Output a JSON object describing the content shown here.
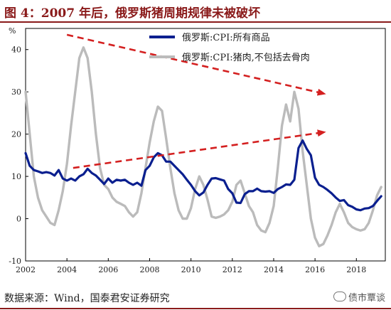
{
  "figure": {
    "title": "图 4：2007 年后，俄罗斯猪周期规律未被破坏",
    "source": "数据来源：Wind，国泰君安证券研究",
    "watermark": "债市覃谈"
  },
  "chart_data": {
    "type": "line",
    "title": "",
    "ylabel": "%",
    "xlabel": "",
    "ylim": [
      -10,
      45
    ],
    "xlim": [
      2002,
      2019.4
    ],
    "yticks": [
      -10,
      0,
      10,
      20,
      30,
      40
    ],
    "xticks": [
      "2002",
      "2004",
      "2006",
      "2008",
      "2010",
      "2012",
      "2014",
      "2016",
      "2018"
    ],
    "legend_position": "top-right",
    "grid": false,
    "series": [
      {
        "name": "俄罗斯:CPI:所有商品",
        "color": "#0a1f8f",
        "x": [
          2002.0,
          2002.2,
          2002.4,
          2002.6,
          2002.8,
          2003.0,
          2003.2,
          2003.4,
          2003.6,
          2003.8,
          2004.0,
          2004.2,
          2004.4,
          2004.6,
          2004.8,
          2005.0,
          2005.2,
          2005.4,
          2005.6,
          2005.8,
          2006.0,
          2006.2,
          2006.4,
          2006.6,
          2006.8,
          2007.0,
          2007.2,
          2007.4,
          2007.6,
          2007.8,
          2008.0,
          2008.2,
          2008.4,
          2008.6,
          2008.8,
          2009.0,
          2009.2,
          2009.4,
          2009.6,
          2009.8,
          2010.0,
          2010.2,
          2010.4,
          2010.6,
          2010.8,
          2011.0,
          2011.2,
          2011.4,
          2011.6,
          2011.8,
          2012.0,
          2012.2,
          2012.4,
          2012.6,
          2012.8,
          2013.0,
          2013.2,
          2013.4,
          2013.6,
          2013.8,
          2014.0,
          2014.2,
          2014.4,
          2014.6,
          2014.8,
          2015.0,
          2015.2,
          2015.4,
          2015.6,
          2015.8,
          2016.0,
          2016.2,
          2016.4,
          2016.6,
          2016.8,
          2017.0,
          2017.2,
          2017.4,
          2017.6,
          2017.8,
          2018.0,
          2018.2,
          2018.4,
          2018.6,
          2018.8,
          2019.0,
          2019.2
        ],
        "values": [
          15.5,
          12.5,
          11.5,
          11.2,
          10.8,
          11.0,
          10.8,
          10.2,
          11.5,
          9.5,
          9.0,
          9.5,
          9.0,
          10.0,
          10.5,
          11.8,
          10.8,
          10.2,
          9.2,
          8.2,
          9.5,
          8.5,
          9.2,
          9.0,
          9.2,
          8.5,
          8.0,
          8.5,
          7.8,
          11.5,
          12.5,
          14.5,
          15.5,
          15.0,
          13.5,
          13.5,
          12.5,
          11.5,
          10.5,
          9.2,
          8.0,
          6.5,
          5.5,
          6.2,
          8.0,
          9.5,
          9.6,
          9.3,
          9.0,
          7.0,
          6.0,
          3.8,
          3.7,
          5.8,
          6.5,
          6.5,
          7.1,
          6.5,
          6.4,
          6.5,
          6.1,
          7.0,
          7.5,
          8.1,
          8.0,
          9.2,
          16.7,
          18.5,
          16.5,
          15.0,
          9.7,
          8.0,
          7.5,
          6.8,
          6.0,
          5.0,
          4.2,
          4.4,
          3.2,
          2.8,
          2.2,
          2.0,
          2.4,
          2.5,
          3.0,
          4.2,
          5.3
        ]
      },
      {
        "name": "俄罗斯:CPI:猪肉,不包括去骨肉",
        "color": "#bbbbbb",
        "x": [
          2002.0,
          2002.2,
          2002.4,
          2002.6,
          2002.8,
          2003.0,
          2003.2,
          2003.4,
          2003.6,
          2003.8,
          2004.0,
          2004.2,
          2004.4,
          2004.6,
          2004.8,
          2005.0,
          2005.2,
          2005.4,
          2005.6,
          2005.8,
          2006.0,
          2006.2,
          2006.4,
          2006.6,
          2006.8,
          2007.0,
          2007.2,
          2007.4,
          2007.6,
          2007.8,
          2008.0,
          2008.2,
          2008.4,
          2008.6,
          2008.8,
          2009.0,
          2009.2,
          2009.4,
          2009.6,
          2009.8,
          2010.0,
          2010.2,
          2010.4,
          2010.6,
          2010.8,
          2011.0,
          2011.2,
          2011.4,
          2011.6,
          2011.8,
          2012.0,
          2012.2,
          2012.4,
          2012.6,
          2012.8,
          2013.0,
          2013.2,
          2013.4,
          2013.6,
          2013.8,
          2014.0,
          2014.2,
          2014.4,
          2014.6,
          2014.8,
          2015.0,
          2015.2,
          2015.4,
          2015.6,
          2015.8,
          2016.0,
          2016.2,
          2016.4,
          2016.6,
          2016.8,
          2017.0,
          2017.2,
          2017.4,
          2017.6,
          2017.8,
          2018.0,
          2018.2,
          2018.4,
          2018.6,
          2018.8,
          2019.0,
          2019.2
        ],
        "values": [
          30.0,
          20.0,
          10.0,
          5.0,
          2.0,
          0.5,
          -1.0,
          -1.5,
          2.0,
          6.5,
          13.0,
          22.0,
          30.0,
          38.0,
          40.5,
          38.0,
          30.0,
          20.0,
          12.0,
          8.0,
          7.0,
          5.0,
          4.0,
          3.5,
          3.0,
          1.5,
          0.5,
          1.5,
          6.0,
          12.0,
          18.0,
          23.0,
          26.5,
          25.5,
          19.0,
          12.0,
          6.0,
          2.0,
          0.0,
          0.0,
          2.5,
          7.0,
          10.0,
          8.0,
          4.5,
          0.5,
          0.2,
          0.5,
          1.0,
          2.0,
          4.0,
          8.0,
          9.0,
          6.0,
          3.0,
          1.5,
          -1.5,
          -2.8,
          -3.2,
          -1.0,
          3.0,
          12.0,
          22.0,
          27.0,
          23.0,
          30.0,
          26.0,
          16.0,
          8.0,
          0.0,
          -4.5,
          -6.5,
          -6.0,
          -4.0,
          -1.5,
          1.5,
          3.5,
          1.5,
          -1.0,
          -2.0,
          -2.5,
          -2.8,
          -2.5,
          -1.0,
          2.0,
          5.5,
          7.5
        ]
      }
    ],
    "annotations": [
      {
        "type": "arrow",
        "style": "dashed",
        "color": "#d42020",
        "from": {
          "x": 2004.0,
          "y": 43.5
        },
        "to": {
          "x": 2016.5,
          "y": 29.5
        }
      },
      {
        "type": "arrow",
        "style": "dashed",
        "color": "#d42020",
        "from": {
          "x": 2004.3,
          "y": 12.0
        },
        "to": {
          "x": 2016.5,
          "y": 20.5
        }
      }
    ]
  }
}
